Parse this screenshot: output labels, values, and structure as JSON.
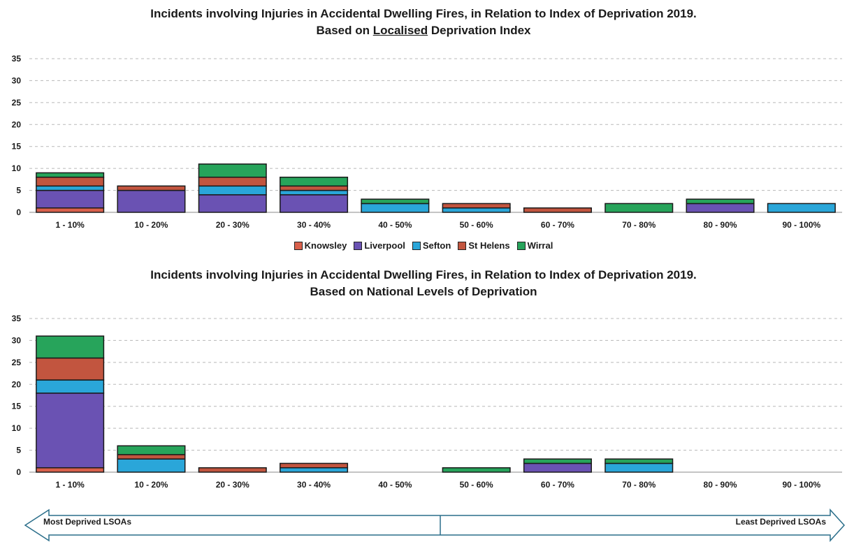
{
  "colors": {
    "Knowsley": "#d9604b",
    "Liverpool": "#6a52b3",
    "Sefton": "#2aa6d9",
    "St Helens": "#c2553f",
    "Wirral": "#27a45b"
  },
  "legend": [
    "Knowsley",
    "Liverpool",
    "Sefton",
    "St Helens",
    "Wirral"
  ],
  "chart_data": [
    {
      "type": "bar",
      "stacked": true,
      "title_line1": "Incidents involving Injuries in Accidental Dwelling Fires, in Relation to Index of  Deprivation 2019.",
      "title_line2_pre": "Based on ",
      "title_line2_emph": "Localised",
      "title_line2_post": " Deprivation Index",
      "categories": [
        "1 - 10%",
        "10 - 20%",
        "20 - 30%",
        "30 - 40%",
        "40 - 50%",
        "50 - 60%",
        "60 - 70%",
        "70 - 80%",
        "80 - 90%",
        "90 - 100%"
      ],
      "series": [
        {
          "name": "Knowsley",
          "values": [
            1,
            0,
            0,
            0,
            0,
            0,
            0,
            0,
            0,
            0
          ]
        },
        {
          "name": "Liverpool",
          "values": [
            4,
            5,
            4,
            4,
            0,
            0,
            0,
            0,
            2,
            0
          ]
        },
        {
          "name": "Sefton",
          "values": [
            1,
            0,
            2,
            1,
            2,
            1,
            0,
            0,
            0,
            2
          ]
        },
        {
          "name": "St Helens",
          "values": [
            2,
            1,
            2,
            1,
            0,
            1,
            1,
            0,
            0,
            0
          ]
        },
        {
          "name": "Wirral",
          "values": [
            1,
            0,
            3,
            2,
            1,
            0,
            0,
            2,
            1,
            0
          ]
        }
      ],
      "ylim": [
        0,
        35
      ],
      "yticks": [
        0,
        5,
        10,
        15,
        20,
        25,
        30,
        35
      ],
      "grid": true,
      "legend_position": "bottom"
    },
    {
      "type": "bar",
      "stacked": true,
      "title_line1": "Incidents involving Injuries in Accidental Dwelling Fires, in Relation to Index of Deprivation 2019.",
      "title_line2_pre": "Based on National Levels of Deprivation",
      "title_line2_emph": "",
      "title_line2_post": "",
      "categories": [
        "1 - 10%",
        "10 - 20%",
        "20 - 30%",
        "30 - 40%",
        "40 - 50%",
        "50 - 60%",
        "60 - 70%",
        "70 - 80%",
        "80 - 90%",
        "90 - 100%"
      ],
      "series": [
        {
          "name": "Knowsley",
          "values": [
            1,
            0,
            0,
            0,
            0,
            0,
            0,
            0,
            0,
            0
          ]
        },
        {
          "name": "Liverpool",
          "values": [
            17,
            0,
            0,
            0,
            0,
            0,
            2,
            0,
            0,
            0
          ]
        },
        {
          "name": "Sefton",
          "values": [
            3,
            3,
            0,
            1,
            0,
            0,
            0,
            2,
            0,
            0
          ]
        },
        {
          "name": "St Helens",
          "values": [
            5,
            1,
            1,
            1,
            0,
            0,
            0,
            0,
            0,
            0
          ]
        },
        {
          "name": "Wirral",
          "values": [
            5,
            2,
            0,
            0,
            0,
            1,
            1,
            1,
            0,
            0
          ]
        }
      ],
      "ylim": [
        0,
        35
      ],
      "yticks": [
        0,
        5,
        10,
        15,
        20,
        25,
        30,
        35
      ],
      "grid": true
    }
  ],
  "arrow": {
    "left_label": "Most Deprived LSOAs",
    "right_label": "Least Deprived LSOAs"
  }
}
